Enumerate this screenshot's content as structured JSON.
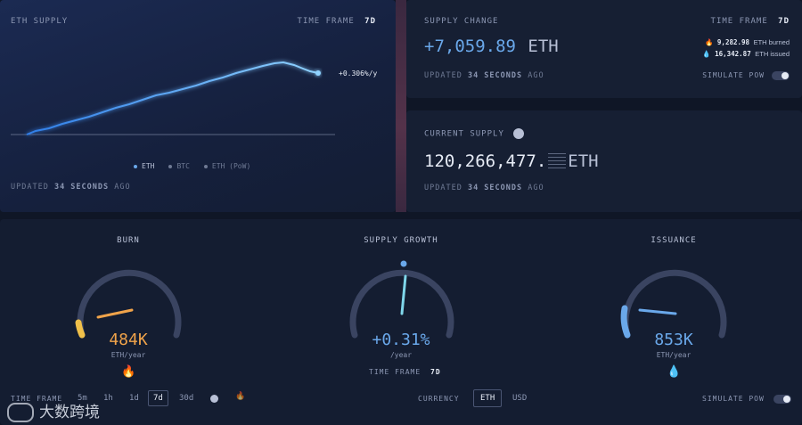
{
  "supply_panel": {
    "title": "ETH SUPPLY",
    "timeframe_label": "TIME FRAME",
    "timeframe_value": "7d",
    "rate_label": "+0.306%/y",
    "legend": [
      "ETH",
      "BTC",
      "ETH (PoW)"
    ],
    "updated_prefix": "UPDATED",
    "updated_value": "34 SECONDS",
    "updated_suffix": "AGO"
  },
  "change_panel": {
    "title": "SUPPLY CHANGE",
    "timeframe_label": "TIME FRAME",
    "timeframe_value": "7d",
    "value": "+7,059.89",
    "unit": "ETH",
    "burned": "9,282.98",
    "burned_label": "ETH burned",
    "issued": "16,342.87",
    "issued_label": "ETH issued",
    "updated_prefix": "UPDATED",
    "updated_value": "34 SECONDS",
    "updated_suffix": "AGO",
    "simulate_label": "SIMULATE PoW"
  },
  "current_panel": {
    "title": "CURRENT SUPPLY",
    "value": "120,266,477.",
    "unit": "ETH",
    "updated_prefix": "UPDATED",
    "updated_value": "34 SECONDS",
    "updated_suffix": "AGO"
  },
  "gauges": {
    "burn": {
      "title": "BURN",
      "value": "484K",
      "unit": "ETH/year",
      "color": "#f0a34a"
    },
    "growth": {
      "title": "SUPPLY GROWTH",
      "value": "+0.31%",
      "unit": "/year",
      "color": "#7fc6e8",
      "timeframe_label": "TIME FRAME",
      "timeframe_value": "7d"
    },
    "issuance": {
      "title": "ISSUANCE",
      "value": "853K",
      "unit": "ETH/year",
      "color": "#6aa8ea"
    }
  },
  "bottom_bar": {
    "timeframe_label": "TIME FRAME",
    "timeframes": [
      "5m",
      "1h",
      "1d",
      "7d",
      "30d"
    ],
    "selected_timeframe": "7d",
    "currency_label": "CURRENCY",
    "currencies": [
      "ETH",
      "USD"
    ],
    "selected_currency": "ETH",
    "simulate_label": "SIMULATE PoW"
  },
  "watermark": "大数跨境"
}
